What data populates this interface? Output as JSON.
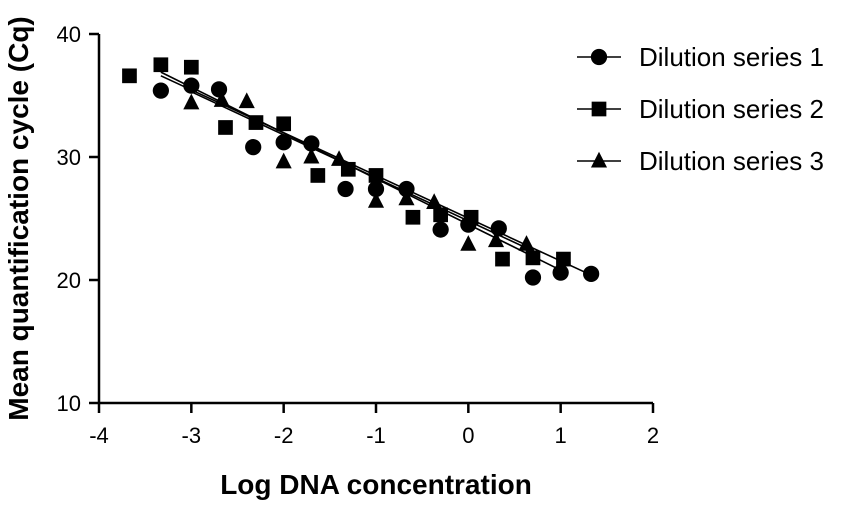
{
  "chart_data": {
    "type": "scatter",
    "title": "",
    "xlabel": "Log DNA concentration",
    "ylabel": "Mean quantification cycle (Cq)",
    "xlim": [
      -4,
      2
    ],
    "ylim": [
      10,
      40
    ],
    "xticks": [
      -4,
      -3,
      -2,
      -1,
      0,
      1,
      2
    ],
    "yticks": [
      10,
      20,
      30,
      40
    ],
    "xtick_labels": [
      "-4",
      "-3",
      "-2",
      "-1",
      "0",
      "1",
      "2"
    ],
    "ytick_labels": [
      "10",
      "20",
      "30",
      "40"
    ],
    "legend_position": "top-right",
    "grid": false,
    "series": [
      {
        "name": "Dilution series 1",
        "marker": "circle",
        "color": "#000000",
        "points": [
          {
            "x": -3.33,
            "y": 35.4
          },
          {
            "x": -3.0,
            "y": 35.8
          },
          {
            "x": -2.7,
            "y": 35.5
          },
          {
            "x": -2.33,
            "y": 30.8
          },
          {
            "x": -2.0,
            "y": 31.2
          },
          {
            "x": -1.7,
            "y": 31.1
          },
          {
            "x": -1.33,
            "y": 27.4
          },
          {
            "x": -1.0,
            "y": 27.4
          },
          {
            "x": -0.67,
            "y": 27.4
          },
          {
            "x": -0.3,
            "y": 24.1
          },
          {
            "x": 0.0,
            "y": 24.5
          },
          {
            "x": 0.33,
            "y": 24.2
          },
          {
            "x": 0.7,
            "y": 20.2
          },
          {
            "x": 1.0,
            "y": 20.6
          },
          {
            "x": 1.33,
            "y": 20.5
          }
        ],
        "fit": {
          "x": [
            -3.33,
            1.33
          ],
          "y": [
            36.6,
            20.4
          ]
        }
      },
      {
        "name": "Dilution series 2",
        "marker": "square",
        "color": "#000000",
        "points": [
          {
            "x": -3.67,
            "y": 36.6
          },
          {
            "x": -3.33,
            "y": 37.5
          },
          {
            "x": -3.0,
            "y": 37.3
          },
          {
            "x": -2.63,
            "y": 32.4
          },
          {
            "x": -2.3,
            "y": 32.8
          },
          {
            "x": -2.0,
            "y": 32.7
          },
          {
            "x": -1.63,
            "y": 28.5
          },
          {
            "x": -1.3,
            "y": 29.0
          },
          {
            "x": -1.0,
            "y": 28.5
          },
          {
            "x": -0.6,
            "y": 25.1
          },
          {
            "x": -0.3,
            "y": 25.3
          },
          {
            "x": 0.03,
            "y": 25.1
          },
          {
            "x": 0.37,
            "y": 21.7
          },
          {
            "x": 0.7,
            "y": 21.8
          },
          {
            "x": 1.03,
            "y": 21.7
          }
        ],
        "fit": {
          "x": [
            -3.33,
            1.0
          ],
          "y": [
            36.9,
            20.8
          ]
        }
      },
      {
        "name": "Dilution series 3",
        "marker": "triangle",
        "color": "#000000",
        "points": [
          {
            "x": -3.0,
            "y": 34.4
          },
          {
            "x": -2.67,
            "y": 34.6
          },
          {
            "x": -2.4,
            "y": 34.5
          },
          {
            "x": -2.0,
            "y": 29.6
          },
          {
            "x": -1.7,
            "y": 30.0
          },
          {
            "x": -1.4,
            "y": 29.8
          },
          {
            "x": -1.0,
            "y": 26.4
          },
          {
            "x": -0.67,
            "y": 26.6
          },
          {
            "x": -0.37,
            "y": 26.3
          },
          {
            "x": 0.0,
            "y": 22.9
          },
          {
            "x": 0.3,
            "y": 23.2
          },
          {
            "x": 0.63,
            "y": 22.9
          }
        ],
        "fit": {
          "x": [
            -3.0,
            0.63
          ],
          "y": [
            35.3,
            22.6
          ]
        }
      }
    ]
  }
}
